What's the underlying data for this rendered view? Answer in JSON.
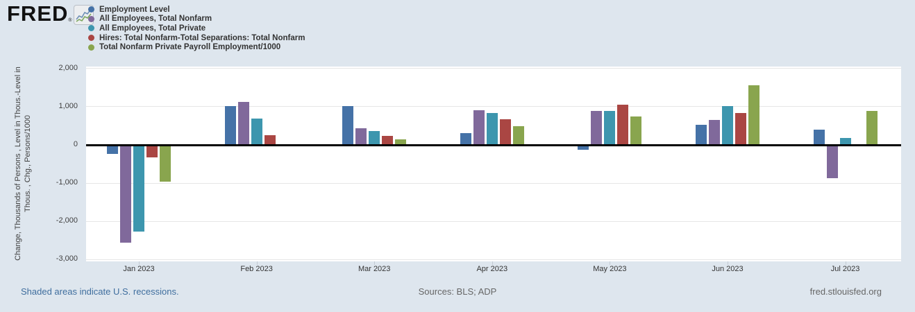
{
  "logo": {
    "text": "FRED",
    "registered": "®"
  },
  "chart_data": {
    "type": "bar",
    "categories": [
      "Jan 2023",
      "Feb 2023",
      "Mar 2023",
      "Apr 2023",
      "May 2023",
      "Jun 2023",
      "Jul 2023"
    ],
    "series": [
      {
        "name": "Employment Level",
        "color": "#4572a7",
        "values": [
          -220,
          1000,
          1000,
          300,
          -120,
          520,
          390
        ]
      },
      {
        "name": "All Employees, Total Nonfarm",
        "color": "#80699b",
        "values": [
          -2540,
          1120,
          420,
          890,
          875,
          640,
          -860
        ]
      },
      {
        "name": "All Employees, Total Private",
        "color": "#3d96ae",
        "values": [
          -2260,
          680,
          355,
          825,
          875,
          1000,
          165
        ]
      },
      {
        "name": "Hires: Total Nonfarm-Total Separations: Total Nonfarm",
        "color": "#aa4643",
        "values": [
          -310,
          240,
          230,
          660,
          1040,
          830,
          0
        ]
      },
      {
        "name": "Total Nonfarm Private Payroll Employment/1000",
        "color": "#89a54e",
        "values": [
          -960,
          0,
          130,
          480,
          735,
          1550,
          880
        ]
      }
    ],
    "title": "",
    "xlabel": "",
    "ylabel_line1": "Change, Thousands of Persons , Level in Thous.-Level in",
    "ylabel_line2": "Thous. , Chg., Persons/1000",
    "yticks": [
      2000,
      1000,
      0,
      -1000,
      -2000,
      -3000
    ],
    "ylim": [
      -3055,
      2040
    ],
    "grid": true,
    "legend_position": "top-left",
    "zero_means_no_bar": true
  },
  "footer": {
    "recession_note": "Shaded areas indicate U.S. recessions.",
    "sources": "Sources: BLS; ADP",
    "site": "fred.stlouisfed.org"
  }
}
